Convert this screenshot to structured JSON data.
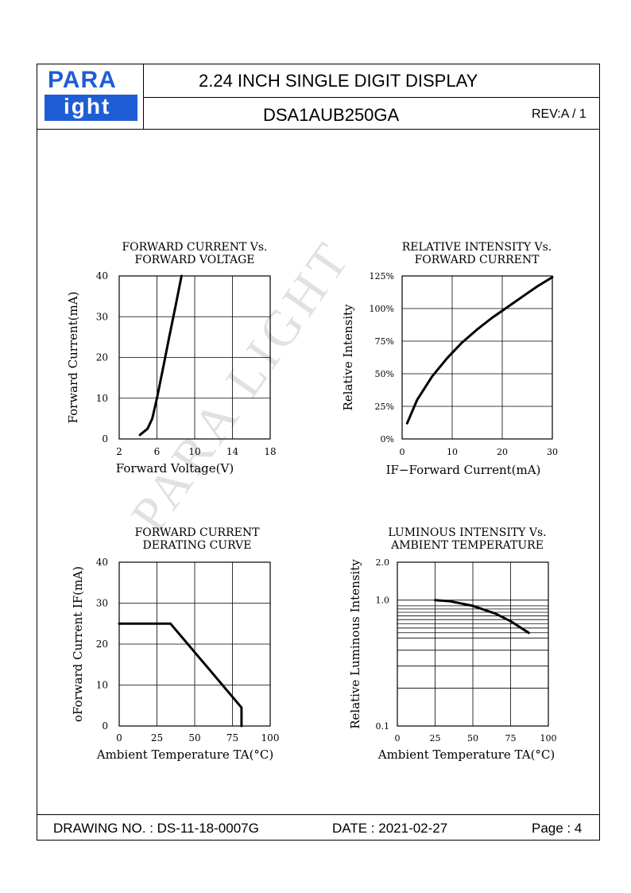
{
  "header": {
    "logo_top": "PARA",
    "logo_bottom": "ight",
    "title": "2.24 INCH    SINGLE    DIGIT    DISPLAY",
    "part_number": "DSA1AUB250GA",
    "revision": "REV:A / 1"
  },
  "footer": {
    "drawing_no": "DRAWING NO. : DS-11-18-0007G",
    "date": "DATE : 2021-02-27",
    "page": "Page : 4"
  },
  "watermark": "PARA LIGHT",
  "colors": {
    "logo_blue": "#1f5dd6",
    "line": "#000000"
  },
  "chart_data": [
    {
      "type": "line",
      "title": "FORWARD CURRENT Vs.\nFORWARD VOLTAGE",
      "title_lines": [
        "FORWARD  CURRENT  Vs.",
        "FORWARD  VOLTAGE"
      ],
      "xlabel": "Forward Voltage(V)",
      "ylabel": "Forward Current(mA)",
      "xticks": [
        "2",
        "6",
        "10",
        "14",
        "18"
      ],
      "yticks": [
        "0",
        "10",
        "20",
        "30",
        "40"
      ],
      "xlim": [
        2,
        18
      ],
      "ylim": [
        0,
        40
      ],
      "grid": true,
      "series": [
        {
          "x": [
            4.2,
            5.0,
            5.5,
            6.0,
            6.7,
            7.3,
            8.0,
            8.6
          ],
          "y": [
            1,
            2.5,
            5,
            10,
            18,
            25,
            33,
            40
          ]
        }
      ]
    },
    {
      "type": "line",
      "title_lines": [
        "RELATIVE  INTENSITY  Vs.",
        "FORWARD  CURRENT"
      ],
      "xlabel": "IF−Forward  Current(mA)",
      "ylabel": "Relative  Intensity",
      "xticks": [
        "0",
        "10",
        "20",
        "30"
      ],
      "yticks": [
        "0%",
        "25%",
        "50%",
        "75%",
        "100%",
        "125%"
      ],
      "xlim": [
        0,
        30
      ],
      "ylim": [
        0,
        125
      ],
      "grid": true,
      "series": [
        {
          "x": [
            1,
            3,
            6,
            9,
            12,
            15,
            18,
            21,
            24,
            27,
            30
          ],
          "y": [
            12,
            30,
            48,
            62,
            74,
            84,
            93,
            101,
            109,
            117,
            124
          ]
        }
      ]
    },
    {
      "type": "line",
      "title_lines": [
        "FORWARD  CURRENT",
        "DERATING  CURVE"
      ],
      "xlabel": "Ambient  Temperature  TA(°C)",
      "ylabel": "oForward  Current  IF(mA)",
      "xticks": [
        "0",
        "25",
        "50",
        "75",
        "100"
      ],
      "yticks": [
        "0",
        "10",
        "20",
        "30",
        "40"
      ],
      "xlim": [
        0,
        100
      ],
      "ylim": [
        0,
        40
      ],
      "grid": true,
      "series": [
        {
          "x": [
            0,
            34,
            81,
            81
          ],
          "y": [
            25,
            25,
            4.5,
            0
          ]
        }
      ]
    },
    {
      "type": "line",
      "title_lines": [
        "LUMINOUS  INTENSITY  Vs.",
        "AMBIENT  TEMPERATURE"
      ],
      "xlabel": "Ambient  Temperature  TA(°C)",
      "ylabel": "Relative  Luminous  Intensity",
      "xticks": [
        "0",
        "25",
        "50",
        "75",
        "100"
      ],
      "yticks": [
        "0.1",
        "1.0",
        "2.0"
      ],
      "xlim": [
        0,
        100
      ],
      "ylim": [
        0.1,
        2.0
      ],
      "yscale": "log",
      "grid": true,
      "series": [
        {
          "x": [
            25,
            35,
            50,
            65,
            75,
            87
          ],
          "y": [
            1.0,
            0.98,
            0.9,
            0.78,
            0.68,
            0.55
          ]
        }
      ]
    }
  ]
}
